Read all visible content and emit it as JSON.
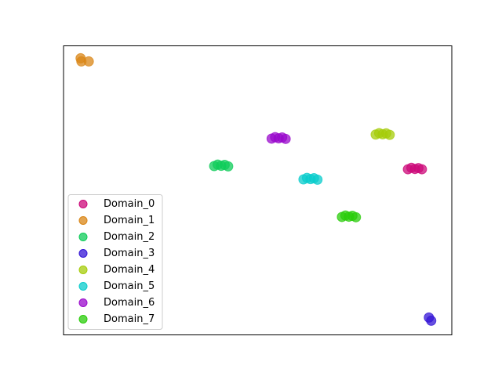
{
  "chart_data": {
    "type": "scatter",
    "xlim": [
      0,
      100
    ],
    "ylim": [
      0,
      100
    ],
    "legend": "lower left",
    "series": [
      {
        "name": "Domain_0",
        "color": "#cc0a7a",
        "x": [
          88.7,
          89.6,
          90.5,
          91.4,
          92.3
        ],
        "y": [
          57.3,
          57.8,
          57.4,
          57.7,
          57.3
        ]
      },
      {
        "name": "Domain_1",
        "color": "#d98515",
        "x": [
          4.4,
          4.6,
          6.5
        ],
        "y": [
          95.7,
          94.6,
          94.6
        ]
      },
      {
        "name": "Domain_2",
        "color": "#0fcc5a",
        "x": [
          38.8,
          39.7,
          40.6,
          41.5,
          42.4
        ],
        "y": [
          58.4,
          58.9,
          58.5,
          58.8,
          58.3
        ]
      },
      {
        "name": "Domain_3",
        "color": "#3415d6",
        "x": [
          94.1,
          94.7
        ],
        "y": [
          6.0,
          4.9
        ]
      },
      {
        "name": "Domain_4",
        "color": "#a5cc0a",
        "x": [
          80.4,
          81.3,
          82.2,
          83.1,
          84.0
        ],
        "y": [
          69.3,
          69.8,
          69.4,
          69.7,
          69.2
        ]
      },
      {
        "name": "Domain_5",
        "color": "#0acccc",
        "x": [
          61.8,
          62.7,
          63.6,
          64.5,
          65.4
        ],
        "y": [
          53.8,
          54.3,
          53.9,
          54.2,
          53.7
        ]
      },
      {
        "name": "Domain_6",
        "color": "#9a0acc",
        "x": [
          53.6,
          54.5,
          55.4,
          56.3,
          57.2
        ],
        "y": [
          67.9,
          68.4,
          68.0,
          68.3,
          67.8
        ]
      },
      {
        "name": "Domain_7",
        "color": "#2acc0a",
        "x": [
          71.7,
          72.6,
          73.5,
          74.4,
          75.3
        ],
        "y": [
          40.8,
          41.3,
          40.9,
          41.2,
          40.7
        ]
      }
    ]
  }
}
